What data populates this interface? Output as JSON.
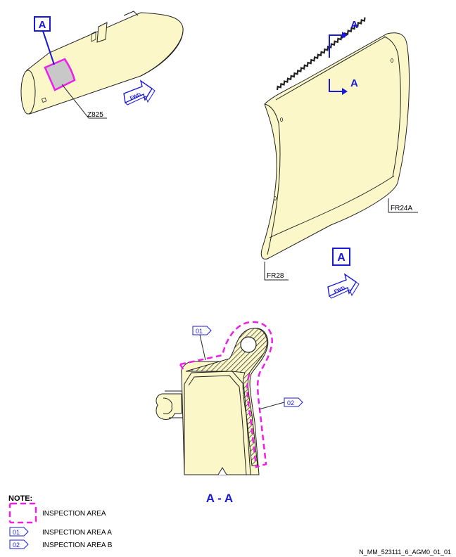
{
  "callouts": {
    "view_a_top": "A",
    "view_a_panel": "A",
    "section_arrow_upper": "A",
    "section_arrow_lower": "A",
    "section_title": "A - A"
  },
  "labels": {
    "zone": "Z825",
    "fwd_left": "FWD",
    "fwd_right": "FWD",
    "frame_aft": "FR24A",
    "frame_fwd": "FR28"
  },
  "tags": {
    "area_a": "01",
    "area_b": "02"
  },
  "note": {
    "heading": "NOTE:",
    "inspection_area": "INSPECTION AREA",
    "tag_a": "01",
    "area_a_label": "INSPECTION AREA A",
    "tag_b": "02",
    "area_b_label": "INSPECTION AREA B"
  },
  "drawing_id": "N_MM_523111_6_AGM0_01_01",
  "colors": {
    "part_fill": "#fbf7c9",
    "inspection_dash": "#ee1ee6",
    "callout_blue": "#1a1ad6",
    "outline": "#222222"
  }
}
